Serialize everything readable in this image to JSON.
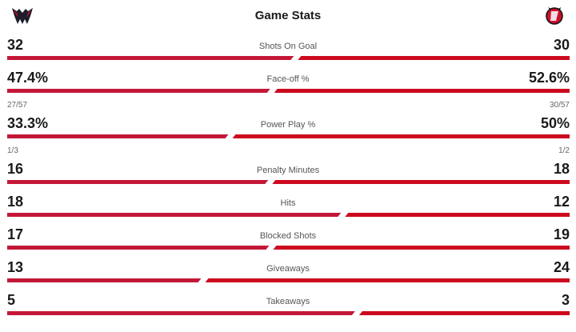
{
  "header": {
    "title": "Game Stats",
    "left_team_logo": "capitals-logo",
    "right_team_logo": "devils-logo"
  },
  "colors": {
    "left_bar": "#c41838",
    "right_bar": "#cc0a1e"
  },
  "stats": [
    {
      "label": "Shots On Goal",
      "left": "32",
      "right": "30",
      "left_num": 32,
      "right_num": 30
    },
    {
      "label": "Face-off %",
      "left": "47.4%",
      "right": "52.6%",
      "left_num": 47.4,
      "right_num": 52.6,
      "left_sub": "27/57",
      "right_sub": "30/57"
    },
    {
      "label": "Power Play %",
      "left": "33.3%",
      "right": "50%",
      "left_num": 33.3,
      "right_num": 50,
      "left_sub": "1/3",
      "right_sub": "1/2"
    },
    {
      "label": "Penalty Minutes",
      "left": "16",
      "right": "18",
      "left_num": 16,
      "right_num": 18
    },
    {
      "label": "Hits",
      "left": "18",
      "right": "12",
      "left_num": 18,
      "right_num": 12
    },
    {
      "label": "Blocked Shots",
      "left": "17",
      "right": "19",
      "left_num": 17,
      "right_num": 19
    },
    {
      "label": "Giveaways",
      "left": "13",
      "right": "24",
      "left_num": 13,
      "right_num": 24
    },
    {
      "label": "Takeaways",
      "left": "5",
      "right": "3",
      "left_num": 5,
      "right_num": 3
    }
  ]
}
